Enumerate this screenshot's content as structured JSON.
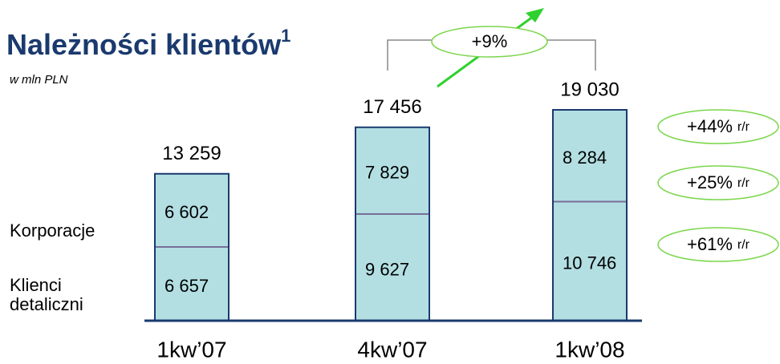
{
  "chart_data": {
    "type": "stacked_bar",
    "title": "Należności klientów",
    "title_footnote": "1",
    "subtitle": "w mln PLN",
    "categories": [
      "1kw’07",
      "4kw’07",
      "1kw’08"
    ],
    "series": [
      {
        "name": "Klienci detaliczni",
        "color": "#b3dfe3",
        "values": [
          6657,
          9627,
          10746
        ],
        "value_labels": [
          "6 657",
          "9 627",
          "10 746"
        ]
      },
      {
        "name": "Korporacje",
        "color": "#b3dfe3",
        "values": [
          6602,
          7829,
          8284
        ],
        "value_labels": [
          "6 602",
          "7 829",
          "8 284"
        ]
      }
    ],
    "totals": [
      13259,
      17456,
      19030
    ],
    "total_labels": [
      "13 259",
      "17 456",
      "19 030"
    ],
    "annotations": [
      {
        "text": "+9%"
      },
      {
        "text": "+44%",
        "suffix": "r/r"
      },
      {
        "text": "+25%",
        "suffix": "r/r"
      },
      {
        "text": "+61%",
        "suffix": "r/r"
      }
    ]
  }
}
